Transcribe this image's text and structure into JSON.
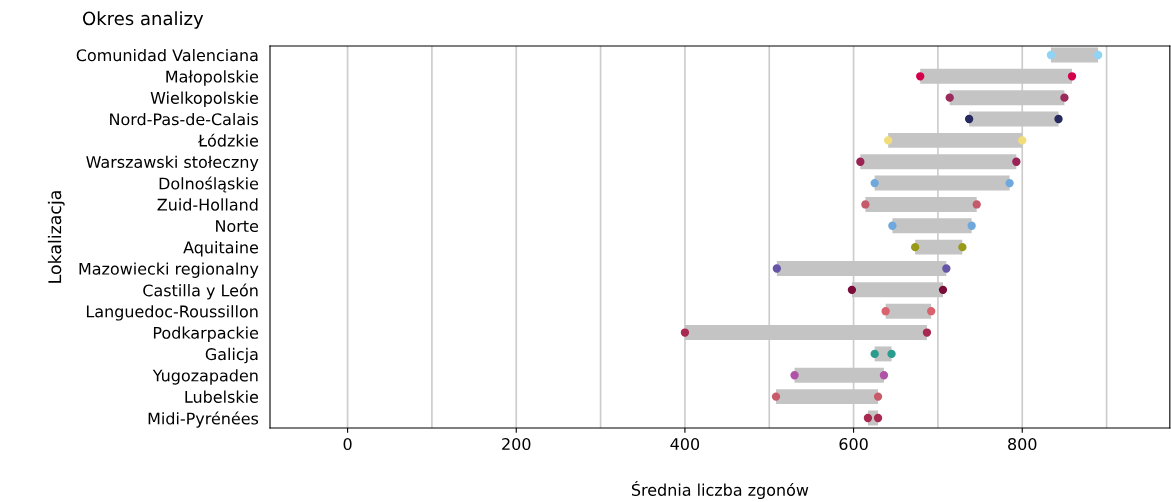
{
  "chart_data": {
    "type": "bar",
    "orientation": "horizontal",
    "title": "Okres analizy",
    "xlabel": "Średnia liczba zgonów",
    "ylabel": "Lokalizacja",
    "categories": [
      "Comunidad Valenciana",
      "Małopolskie",
      "Wielkopolskie",
      "Nord-Pas-de-Calais",
      "Łódzkie",
      "Warszawski stołeczny",
      "Dolnośląskie",
      "Zuid-Holland",
      "Norte",
      "Aquitaine",
      "Mazowiecki regionalny",
      "Castilla y León",
      "Languedoc-Roussillon",
      "Podkarpackie",
      "Galicja",
      "Yugozapaden",
      "Lubelskie",
      "Midi-Pyrénées"
    ],
    "series": [
      {
        "color": "#c4c4c4",
        "base": [
          834,
          679,
          714,
          737,
          641,
          608,
          625,
          614,
          646,
          673,
          509,
          598,
          638,
          400,
          625,
          530,
          508,
          617
        ],
        "values": [
          56,
          180,
          136,
          106,
          159,
          185,
          160,
          132,
          94,
          56,
          201,
          108,
          54,
          287,
          20,
          106,
          121,
          12
        ]
      },
      {
        "type": "scatter",
        "values": [
          834,
          679,
          714,
          737,
          641,
          608,
          625,
          614,
          646,
          673,
          509,
          598,
          638,
          400,
          625,
          530,
          508,
          617
        ],
        "colors": [
          "#8fd4f5",
          "#d4004b",
          "#9a2b5a",
          "#262a5e",
          "#f2dd7a",
          "#9a2254",
          "#6fa8dc",
          "#c45a6a",
          "#6fa8dc",
          "#9a9a1a",
          "#6654a6",
          "#7a0c3a",
          "#d9626e",
          "#a8294f",
          "#2a9d8f",
          "#b052a8",
          "#c95a6a",
          "#a82a50"
        ]
      },
      {
        "type": "scatter",
        "values": [
          890,
          859,
          850,
          843,
          800,
          793,
          785,
          746,
          740,
          729,
          710,
          706,
          692,
          687,
          645,
          636,
          629,
          629
        ],
        "colors": [
          "#8fd4f5",
          "#d4004b",
          "#9a2b5a",
          "#262a5e",
          "#f2dd7a",
          "#9a2254",
          "#6fa8dc",
          "#c45a6a",
          "#6fa8dc",
          "#9a9a1a",
          "#6654a6",
          "#7a0c3a",
          "#d9626e",
          "#a8294f",
          "#2a9d8f",
          "#b052a8",
          "#c95a6a",
          "#a82a50"
        ]
      }
    ],
    "marker": "circle",
    "xlim": [
      -92,
      975
    ],
    "xticks": [
      0,
      {
        "value": 100,
        "label": null
      },
      200,
      {
        "value": 300,
        "label": null
      },
      400,
      {
        "value": 500,
        "label": null
      },
      600,
      {
        "value": 700,
        "label": null
      },
      800,
      {
        "value": 900,
        "label": null
      }
    ],
    "grid": "x",
    "legend": false
  }
}
